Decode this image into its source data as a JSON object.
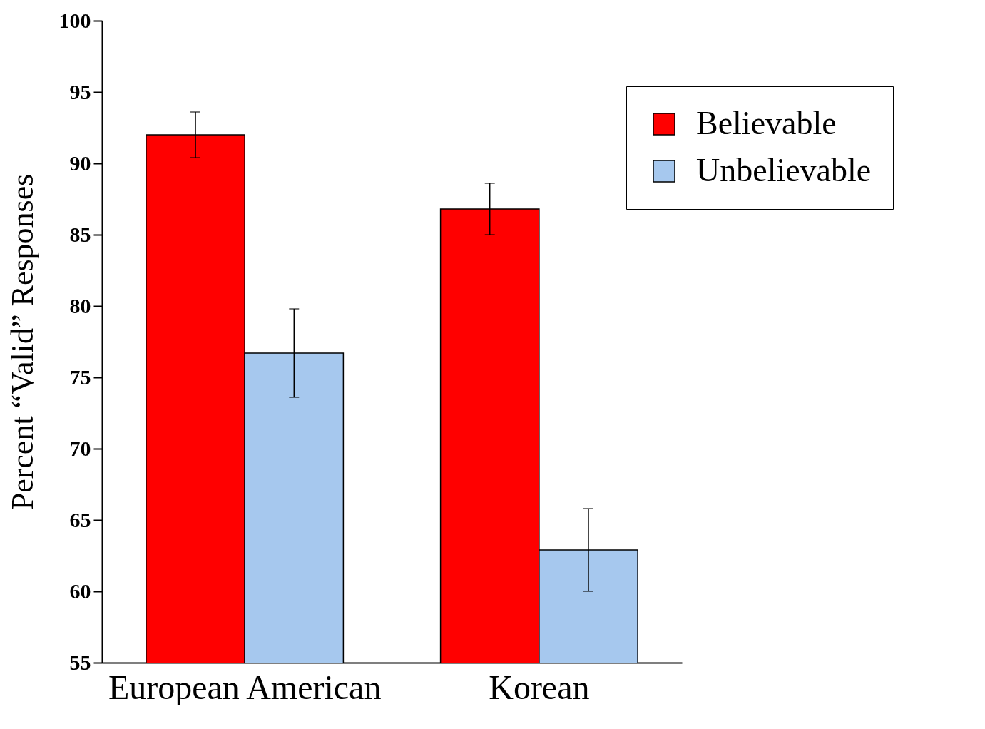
{
  "chart_data": {
    "type": "bar",
    "ylabel": "Percent  “Valid” Responses",
    "categories": [
      "European American",
      "Korean"
    ],
    "series": [
      {
        "name": "Believable",
        "color": "#ff0000",
        "values": [
          92.0,
          86.8
        ],
        "errors": [
          1.6,
          1.8
        ]
      },
      {
        "name": "Unbelievable",
        "color": "#a6c8ee",
        "values": [
          76.7,
          62.9
        ],
        "errors": [
          3.1,
          2.9
        ]
      }
    ],
    "ylim": [
      55,
      100
    ],
    "yticks": [
      55,
      60,
      65,
      70,
      75,
      80,
      85,
      90,
      95,
      100
    ],
    "grid": false,
    "legend": "top right"
  }
}
